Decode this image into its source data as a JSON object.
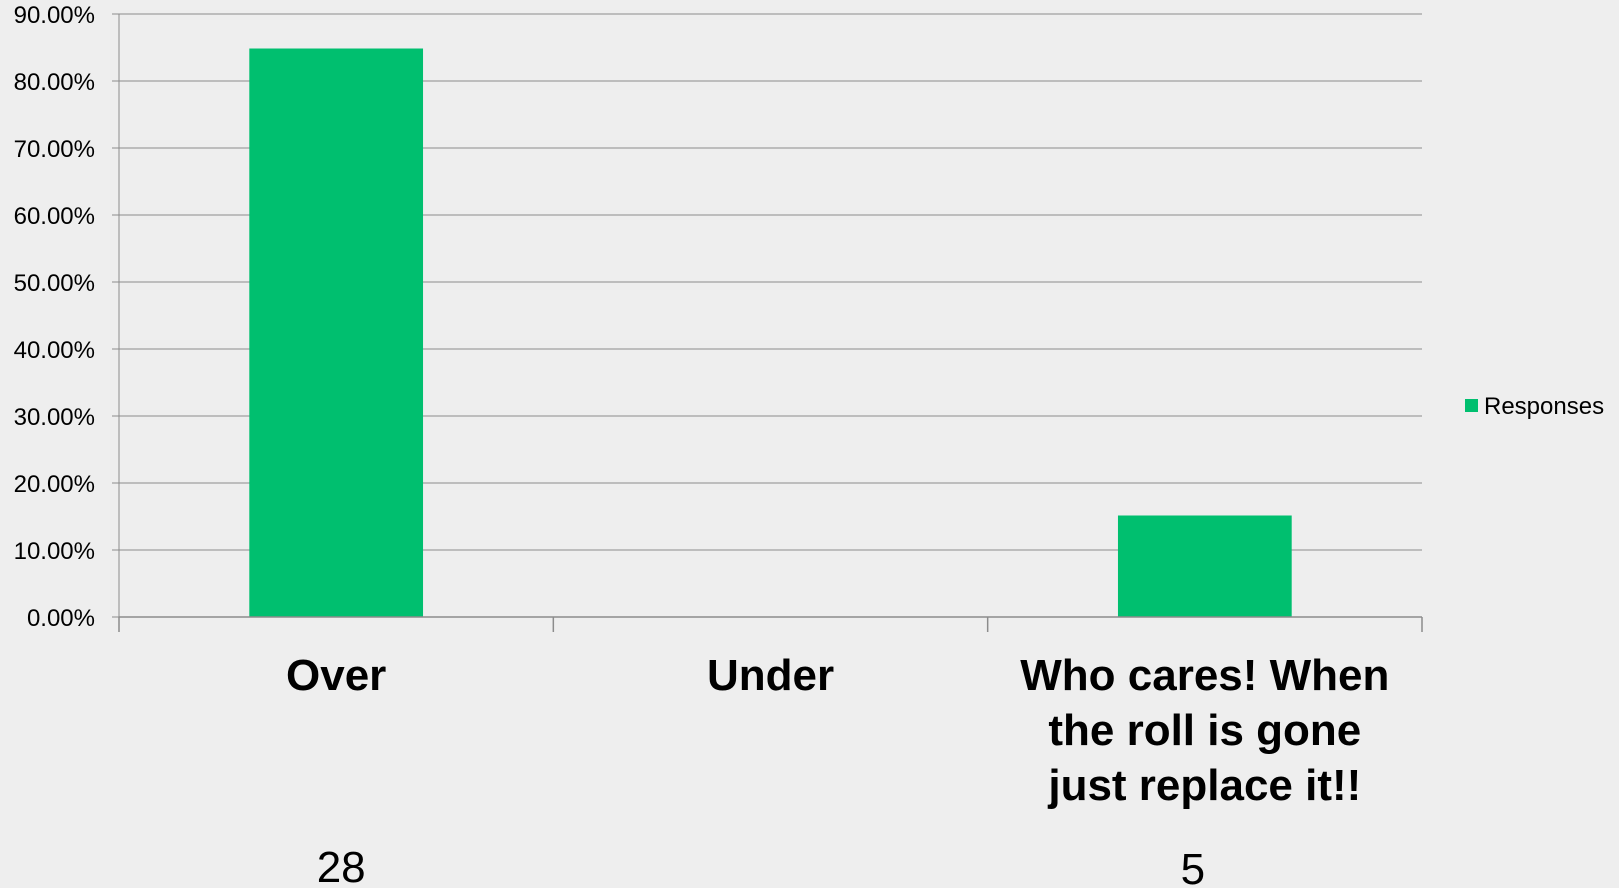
{
  "chart_data": {
    "type": "bar",
    "categories": [
      "Over",
      "Under",
      "Who cares! When the roll is gone just replace it!!"
    ],
    "category_label_lines": [
      [
        "Over"
      ],
      [
        "Under"
      ],
      [
        "Who cares! When",
        "the roll is gone",
        "just replace it!!"
      ]
    ],
    "counts": [
      "28",
      "",
      "5"
    ],
    "series": [
      {
        "name": "Responses",
        "values": [
          84.85,
          0,
          15.15
        ],
        "color": "#00bf6f"
      }
    ],
    "y_ticks": [
      "0.00%",
      "10.00%",
      "20.00%",
      "30.00%",
      "40.00%",
      "50.00%",
      "60.00%",
      "70.00%",
      "80.00%",
      "90.00%"
    ],
    "ylim": [
      0,
      90
    ],
    "grid": true,
    "legend_position": "right",
    "title": "",
    "xlabel": "",
    "ylabel": ""
  }
}
